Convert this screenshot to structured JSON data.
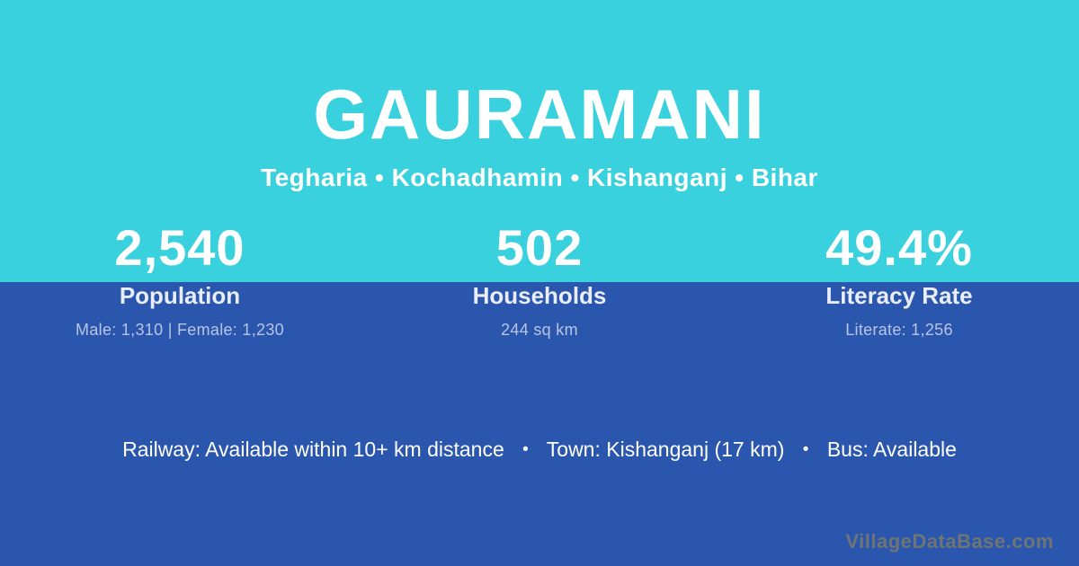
{
  "card": {
    "title": "GAURAMANI",
    "subtitle": "Tegharia • Kochadhamin • Kishanganj • Bihar"
  },
  "stats": [
    {
      "value": "2,540",
      "label": "Population",
      "detail": "Male: 1,310 | Female: 1,230"
    },
    {
      "value": "502",
      "label": "Households",
      "detail": "244 sq km"
    },
    {
      "value": "49.4%",
      "label": "Literacy Rate",
      "detail": "Literate: 1,256"
    }
  ],
  "footer": {
    "railway": "Railway: Available within 10+ km distance",
    "town": "Town: Kishanganj (17 km)",
    "bus": "Bus: Available",
    "separator": "•",
    "watermark": "VillageDataBase.com"
  },
  "colors": {
    "top_background": "#39d1de",
    "bottom_background": "#2a56ae",
    "primary_text": "#ffffff",
    "label_text": "#e9edf8",
    "detail_text": "#b9c5e6",
    "watermark_text": "#6f7574"
  }
}
